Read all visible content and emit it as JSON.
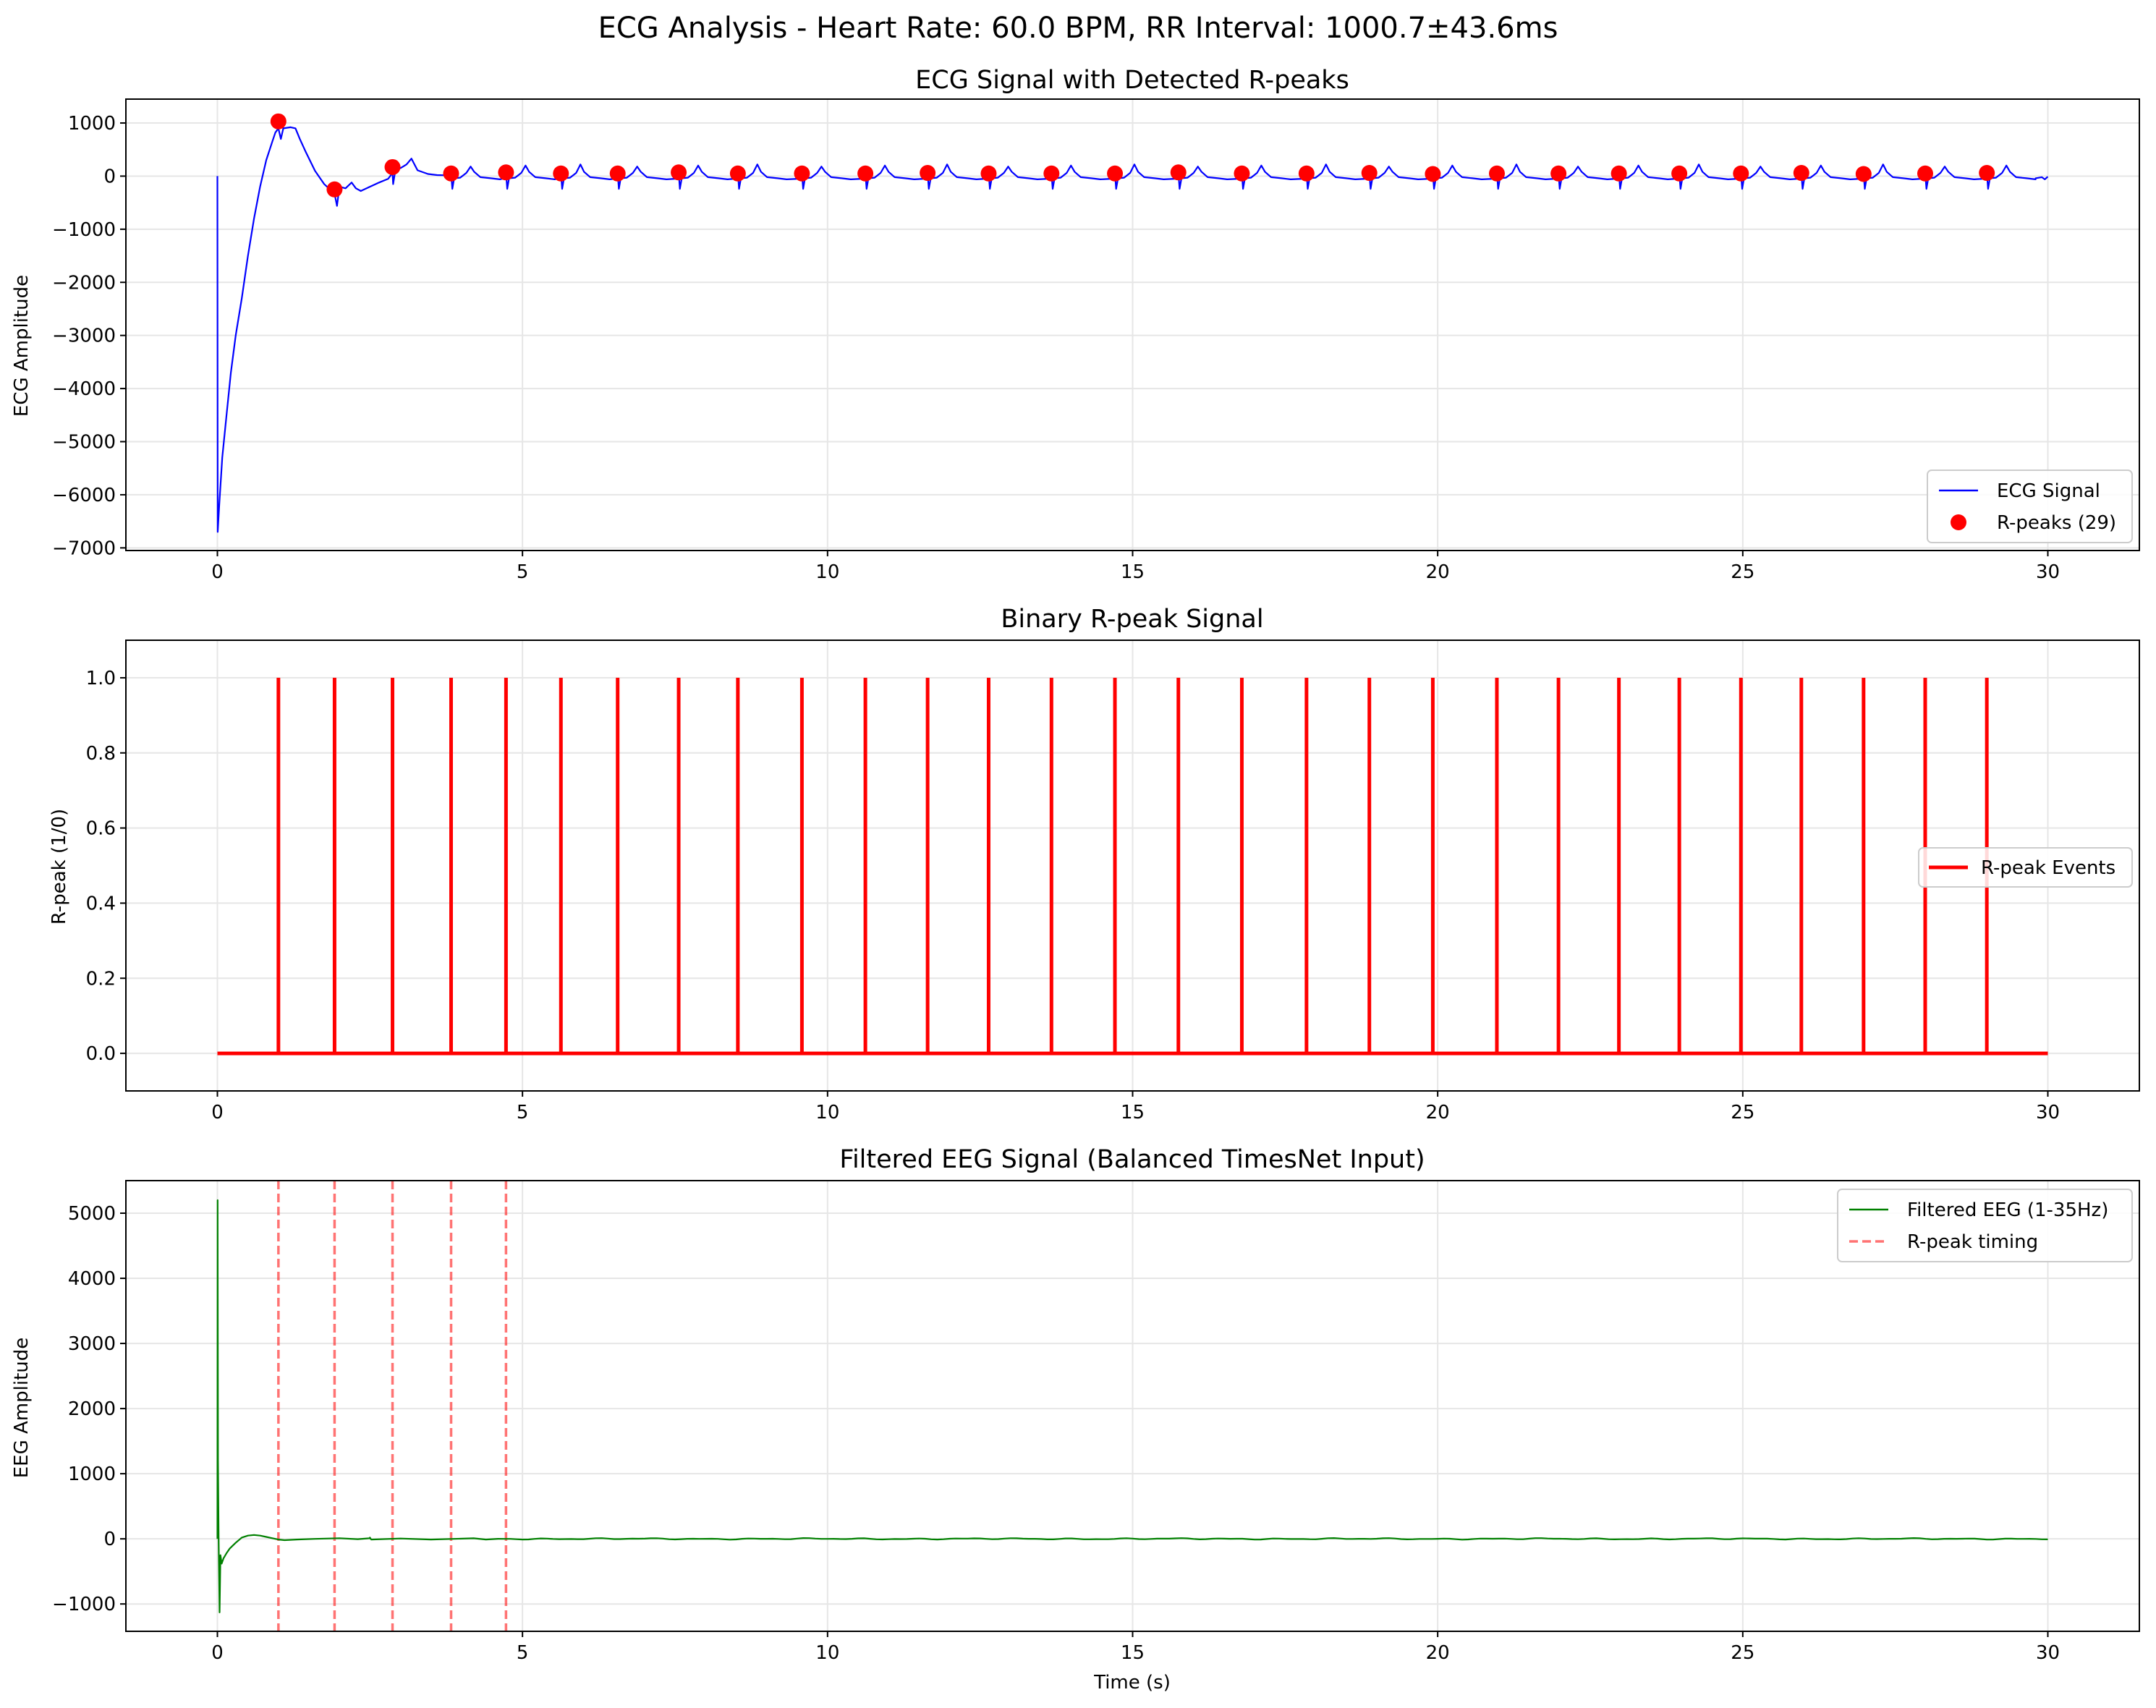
{
  "figure": {
    "suptitle": "ECG Analysis - Heart Rate: 60.0 BPM, RR Interval: 1000.7±43.6ms"
  },
  "colors": {
    "ecg": "#0000ff",
    "peaks": "#ff0000",
    "binary": "#ff0000",
    "eeg": "#008000",
    "rpeak_timing": "#ff0000",
    "grid": "#e6e6e6"
  },
  "chart_data": [
    {
      "id": "ecg",
      "type": "line",
      "title": "ECG Signal with Detected R-peaks",
      "xlabel": "",
      "ylabel": "ECG Amplitude",
      "xlim": [
        -1.5,
        31.5
      ],
      "ylim": [
        -7050,
        1450
      ],
      "xticks": [
        0,
        5,
        10,
        15,
        20,
        25,
        30
      ],
      "yticks": [
        -7000,
        -6000,
        -5000,
        -4000,
        -3000,
        -2000,
        -1000,
        0,
        1000
      ],
      "grid": true,
      "legend_position": "lower right",
      "legend": [
        "ECG Signal",
        "R-peaks (29)"
      ],
      "series": [
        {
          "name": "ECG Signal",
          "kind": "line"
        },
        {
          "name": "R-peaks (29)",
          "kind": "scatter",
          "x": [
            1.0,
            1.92,
            2.87,
            3.83,
            4.73,
            5.63,
            6.56,
            7.56,
            8.53,
            9.58,
            10.62,
            11.64,
            12.64,
            13.67,
            14.71,
            15.75,
            16.79,
            17.85,
            18.88,
            19.92,
            20.97,
            21.98,
            22.97,
            23.96,
            24.97,
            25.96,
            26.98,
            27.99,
            29.0
          ],
          "y": [
            1030,
            -250,
            170,
            50,
            70,
            50,
            50,
            70,
            50,
            50,
            50,
            60,
            50,
            50,
            50,
            70,
            50,
            50,
            60,
            40,
            50,
            50,
            50,
            50,
            50,
            60,
            40,
            50,
            60
          ]
        }
      ]
    },
    {
      "id": "binary",
      "type": "line",
      "title": "Binary R-peak Signal",
      "xlabel": "",
      "ylabel": "R-peak (1/0)",
      "xlim": [
        -1.5,
        31.5
      ],
      "ylim": [
        -0.1,
        1.1
      ],
      "xticks": [
        0,
        5,
        10,
        15,
        20,
        25,
        30
      ],
      "yticks": [
        0.0,
        0.2,
        0.4,
        0.6,
        0.8,
        1.0
      ],
      "grid": true,
      "legend_position": "center right",
      "legend": [
        "R-peak Events"
      ],
      "series": [
        {
          "name": "R-peak Events",
          "peaks_x": [
            1.0,
            1.92,
            2.87,
            3.83,
            4.73,
            5.63,
            6.56,
            7.56,
            8.53,
            9.58,
            10.62,
            11.64,
            12.64,
            13.67,
            14.71,
            15.75,
            16.79,
            17.85,
            18.88,
            19.92,
            20.97,
            21.98,
            22.97,
            23.96,
            24.97,
            25.96,
            26.98,
            27.99,
            29.0
          ],
          "x_range": [
            0,
            30
          ]
        }
      ]
    },
    {
      "id": "eeg",
      "type": "line",
      "title": "Filtered EEG Signal (Balanced TimesNet Input)",
      "xlabel": "Time (s)",
      "ylabel": "EEG Amplitude",
      "xlim": [
        -1.5,
        31.5
      ],
      "ylim": [
        -1420,
        5500
      ],
      "xticks": [
        0,
        5,
        10,
        15,
        20,
        25,
        30
      ],
      "yticks": [
        -1000,
        0,
        1000,
        2000,
        3000,
        4000,
        5000
      ],
      "grid": true,
      "legend_position": "upper right",
      "legend": [
        "Filtered EEG (1-35Hz)",
        "R-peak timing"
      ],
      "series": [
        {
          "name": "Filtered EEG (1-35Hz)",
          "kind": "line"
        },
        {
          "name": "R-peak timing",
          "kind": "vlines",
          "x": [
            1.0,
            1.92,
            2.87,
            3.83,
            4.73
          ]
        }
      ]
    }
  ]
}
